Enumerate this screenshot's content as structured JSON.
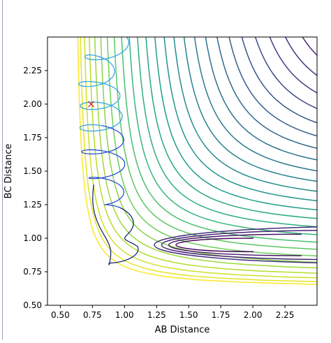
{
  "chart_data": {
    "type": "contour",
    "title": "",
    "xlabel": "AB Distance",
    "ylabel": "BC Distance",
    "xlim": [
      0.4,
      2.5
    ],
    "ylim": [
      0.5,
      2.5
    ],
    "xticks": [
      "0.50",
      "0.75",
      "1.00",
      "1.25",
      "1.50",
      "1.75",
      "2.00",
      "2.25"
    ],
    "yticks": [
      "0.50",
      "0.75",
      "1.00",
      "1.25",
      "1.50",
      "1.75",
      "2.00",
      "2.25"
    ],
    "grid": false,
    "colormap": "viridis",
    "contour_levels": 28,
    "well_left": {
      "x_inf": 0.6,
      "y_min": 0.62,
      "amp": 0.068
    },
    "marker": {
      "x": 0.74,
      "y": 2.0,
      "symbol": "x",
      "color": "#e31a1c"
    },
    "trajectory_colors": [
      "#2ba0e8",
      "#1a44d6",
      "#0a1b6b"
    ],
    "trajectory": {
      "center_x": [
        0.95,
        0.78,
        0.8,
        0.82,
        0.82,
        0.84,
        0.86,
        0.96,
        1.1,
        0.88,
        0.76
      ],
      "center_y": [
        2.49,
        2.3,
        2.1,
        1.95,
        1.78,
        1.6,
        1.4,
        1.2,
        0.92,
        0.78,
        1.38
      ],
      "amplitude_x": [
        0.12,
        0.13,
        0.16,
        0.16,
        0.17,
        0.17,
        0.12,
        0.08,
        0.05,
        0.04,
        0.03
      ],
      "amplitude_y": [
        0.05,
        0.06,
        0.06,
        0.06,
        0.06,
        0.05,
        0.04,
        0.03,
        0.02,
        0.02,
        0.02
      ]
    }
  }
}
